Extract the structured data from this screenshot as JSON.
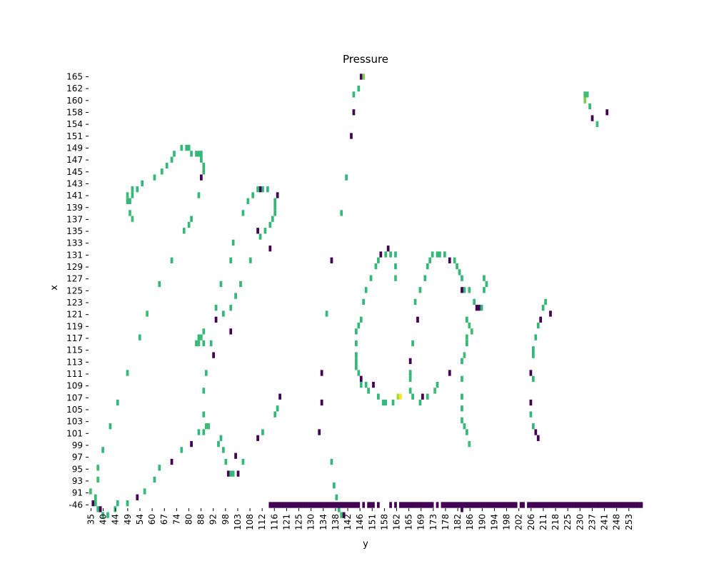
{
  "chart_data": {
    "type": "heatmap",
    "title": "Pressure",
    "xlabel": "y",
    "ylabel": "x",
    "colormap": "viridis",
    "grid": false,
    "legend": "none",
    "colors": {
      "low": "#440154",
      "mid": "#2d9e8a",
      "high": "#35b779",
      "bright": "#7ad151",
      "max": "#fde725"
    },
    "x_ticks": [
      "35",
      "40",
      "44",
      "49",
      "54",
      "60",
      "67",
      "74",
      "80",
      "88",
      "92",
      "98",
      "103",
      "108",
      "112",
      "116",
      "121",
      "125",
      "130",
      "134",
      "138",
      "142",
      "146",
      "151",
      "158",
      "162",
      "165",
      "169",
      "173",
      "178",
      "182",
      "186",
      "190",
      "194",
      "198",
      "202",
      "206",
      "211",
      "218",
      "225",
      "230",
      "237",
      "241",
      "248",
      "253"
    ],
    "y_ticks": [
      "165",
      "162",
      "160",
      "158",
      "154",
      "151",
      "149",
      "147",
      "145",
      "143",
      "141",
      "139",
      "137",
      "135",
      "133",
      "131",
      "129",
      "127",
      "125",
      "123",
      "121",
      "119",
      "117",
      "115",
      "113",
      "111",
      "109",
      "107",
      "105",
      "103",
      "101",
      "99",
      "97",
      "95",
      "93",
      "91",
      "-46"
    ],
    "cells": [
      {
        "x": 145,
        "y": 165,
        "v": 0.0
      },
      {
        "x": 146,
        "y": 165,
        "v": 0.8
      },
      {
        "x": 144,
        "y": 163,
        "v": 0.6
      },
      {
        "x": 142,
        "y": 162,
        "v": 0.6
      },
      {
        "x": 142,
        "y": 159,
        "v": 0.0
      },
      {
        "x": 141,
        "y": 155,
        "v": 0.0
      },
      {
        "x": 139,
        "y": 148,
        "v": 0.6
      },
      {
        "x": 137,
        "y": 142,
        "v": 0.6
      },
      {
        "x": 236,
        "y": 162,
        "v": 0.7
      },
      {
        "x": 237,
        "y": 162,
        "v": 0.7
      },
      {
        "x": 236,
        "y": 161,
        "v": 0.8
      },
      {
        "x": 238,
        "y": 160,
        "v": 0.4
      },
      {
        "x": 239,
        "y": 158,
        "v": 0.0
      },
      {
        "x": 241,
        "y": 157,
        "v": 0.7
      },
      {
        "x": 245,
        "y": 159,
        "v": 0.0
      },
      {
        "x": 72,
        "y": 153,
        "v": 0.6
      },
      {
        "x": 74,
        "y": 153,
        "v": 0.6
      },
      {
        "x": 75,
        "y": 153,
        "v": 0.6
      },
      {
        "x": 69,
        "y": 152,
        "v": 0.6
      },
      {
        "x": 76,
        "y": 152,
        "v": 0.6
      },
      {
        "x": 78,
        "y": 152,
        "v": 0.6
      },
      {
        "x": 79,
        "y": 152,
        "v": 0.6
      },
      {
        "x": 80,
        "y": 152,
        "v": 0.6
      },
      {
        "x": 68,
        "y": 151,
        "v": 0.6
      },
      {
        "x": 80,
        "y": 151,
        "v": 0.6
      },
      {
        "x": 66,
        "y": 150,
        "v": 0.6
      },
      {
        "x": 81,
        "y": 150,
        "v": 0.6
      },
      {
        "x": 81,
        "y": 149,
        "v": 0.6
      },
      {
        "x": 64,
        "y": 149,
        "v": 0.6
      },
      {
        "x": 80,
        "y": 148,
        "v": 0.0
      },
      {
        "x": 61,
        "y": 148,
        "v": 0.6
      },
      {
        "x": 56,
        "y": 147,
        "v": 0.6
      },
      {
        "x": 54,
        "y": 146,
        "v": 0.6
      },
      {
        "x": 52,
        "y": 146,
        "v": 0.6
      },
      {
        "x": 50,
        "y": 145,
        "v": 0.7
      },
      {
        "x": 52,
        "y": 145,
        "v": 0.6
      },
      {
        "x": 50,
        "y": 144,
        "v": 0.6
      },
      {
        "x": 51,
        "y": 144,
        "v": 0.6
      },
      {
        "x": 51,
        "y": 142,
        "v": 0.7
      },
      {
        "x": 52,
        "y": 141,
        "v": 0.7
      },
      {
        "x": 79,
        "y": 145,
        "v": 0.6
      },
      {
        "x": 76,
        "y": 141,
        "v": 0.6
      },
      {
        "x": 75,
        "y": 140,
        "v": 0.6
      },
      {
        "x": 73,
        "y": 139,
        "v": 0.6
      },
      {
        "x": 68,
        "y": 134,
        "v": 0.6
      },
      {
        "x": 63,
        "y": 130,
        "v": 0.6
      },
      {
        "x": 58,
        "y": 125,
        "v": 0.7
      },
      {
        "x": 55,
        "y": 121,
        "v": 0.6
      },
      {
        "x": 50,
        "y": 115,
        "v": 0.6
      },
      {
        "x": 46,
        "y": 110,
        "v": 0.6
      },
      {
        "x": 43,
        "y": 106,
        "v": 0.6
      },
      {
        "x": 40,
        "y": 102,
        "v": 0.6
      },
      {
        "x": 38,
        "y": 99,
        "v": 0.7
      },
      {
        "x": 38,
        "y": 97,
        "v": 0.7
      },
      {
        "x": 35,
        "y": 95,
        "v": 0.7
      },
      {
        "x": 37,
        "y": 94,
        "v": 0.6
      },
      {
        "x": 36,
        "y": 93,
        "v": 0.0
      },
      {
        "x": 37,
        "y": 93,
        "v": 0.6
      },
      {
        "x": 38,
        "y": 92,
        "v": 0.6
      },
      {
        "x": 39,
        "y": 92,
        "v": 0.0
      },
      {
        "x": 40,
        "y": 91,
        "v": 0.6
      },
      {
        "x": 42,
        "y": 91,
        "v": 0.6
      },
      {
        "x": 45,
        "y": 92,
        "v": 0.6
      },
      {
        "x": 46,
        "y": 93,
        "v": 0.6
      },
      {
        "x": 50,
        "y": 93,
        "v": 0.6
      },
      {
        "x": 54,
        "y": 94,
        "v": 0.0
      },
      {
        "x": 57,
        "y": 95,
        "v": 0.6
      },
      {
        "x": 61,
        "y": 97,
        "v": 0.6
      },
      {
        "x": 63,
        "y": 99,
        "v": 0.6
      },
      {
        "x": 68,
        "y": 100,
        "v": 0.0
      },
      {
        "x": 72,
        "y": 102,
        "v": 0.6
      },
      {
        "x": 76,
        "y": 103,
        "v": 0.0
      },
      {
        "x": 79,
        "y": 105,
        "v": 0.6
      },
      {
        "x": 81,
        "y": 105,
        "v": 0.6
      },
      {
        "x": 82,
        "y": 106,
        "v": 0.7
      },
      {
        "x": 83,
        "y": 106,
        "v": 0.7
      },
      {
        "x": 81,
        "y": 108,
        "v": 0.6
      },
      {
        "x": 81,
        "y": 112,
        "v": 0.6
      },
      {
        "x": 82,
        "y": 115,
        "v": 0.6
      },
      {
        "x": 78,
        "y": 120,
        "v": 0.6
      },
      {
        "x": 79,
        "y": 121,
        "v": 0.6
      },
      {
        "x": 80,
        "y": 121,
        "v": 0.7
      },
      {
        "x": 79,
        "y": 120,
        "v": 0.7
      },
      {
        "x": 81,
        "y": 120,
        "v": 0.6
      },
      {
        "x": 81,
        "y": 122,
        "v": 0.6
      },
      {
        "x": 84,
        "y": 120,
        "v": 0.6
      },
      {
        "x": 86,
        "y": 124,
        "v": 0.0
      },
      {
        "x": 86,
        "y": 126,
        "v": 0.6
      },
      {
        "x": 89,
        "y": 125,
        "v": 0.6
      },
      {
        "x": 92,
        "y": 126,
        "v": 0.6
      },
      {
        "x": 94,
        "y": 128,
        "v": 0.6
      },
      {
        "x": 96,
        "y": 130,
        "v": 0.6
      },
      {
        "x": 88,
        "y": 130,
        "v": 0.6
      },
      {
        "x": 92,
        "y": 134,
        "v": 0.6
      },
      {
        "x": 93,
        "y": 137,
        "v": 0.6
      },
      {
        "x": 100,
        "y": 134,
        "v": 0.6
      },
      {
        "x": 103,
        "y": 139,
        "v": 0.0
      },
      {
        "x": 104,
        "y": 138,
        "v": 0.6
      },
      {
        "x": 106,
        "y": 139,
        "v": 0.6
      },
      {
        "x": 108,
        "y": 136,
        "v": 0.0
      },
      {
        "x": 108,
        "y": 140,
        "v": 0.6
      },
      {
        "x": 109,
        "y": 141,
        "v": 0.6
      },
      {
        "x": 110,
        "y": 142,
        "v": 0.6
      },
      {
        "x": 110,
        "y": 143,
        "v": 0.6
      },
      {
        "x": 110,
        "y": 144,
        "v": 0.6
      },
      {
        "x": 111,
        "y": 145,
        "v": 0.0
      },
      {
        "x": 107,
        "y": 146,
        "v": 0.6
      },
      {
        "x": 105,
        "y": 146,
        "v": 0.6
      },
      {
        "x": 104,
        "y": 146,
        "v": 0.0
      },
      {
        "x": 103,
        "y": 146,
        "v": 0.6
      },
      {
        "x": 101,
        "y": 145,
        "v": 0.6
      },
      {
        "x": 99,
        "y": 144,
        "v": 0.6
      },
      {
        "x": 97,
        "y": 142,
        "v": 0.6
      },
      {
        "x": 92,
        "y": 122,
        "v": 0.0
      },
      {
        "x": 85,
        "y": 118,
        "v": 0.0
      },
      {
        "x": 88,
        "y": 104,
        "v": 0.6
      },
      {
        "x": 87,
        "y": 103,
        "v": 0.6
      },
      {
        "x": 89,
        "y": 102,
        "v": 0.6
      },
      {
        "x": 90,
        "y": 100,
        "v": 0.6
      },
      {
        "x": 91,
        "y": 98,
        "v": 0.0
      },
      {
        "x": 92,
        "y": 98,
        "v": 0.6
      },
      {
        "x": 93,
        "y": 98,
        "v": 0.6
      },
      {
        "x": 95,
        "y": 98,
        "v": 0.0
      },
      {
        "x": 94,
        "y": 101,
        "v": 0.0
      },
      {
        "x": 97,
        "y": 100,
        "v": 0.6
      },
      {
        "x": 103,
        "y": 104,
        "v": 0.0
      },
      {
        "x": 105,
        "y": 105,
        "v": 0.6
      },
      {
        "x": 110,
        "y": 108,
        "v": 0.6
      },
      {
        "x": 111,
        "y": 109,
        "v": 0.6
      },
      {
        "x": 112,
        "y": 111,
        "v": 0.0
      },
      {
        "x": 133,
        "y": 100,
        "v": 0.6
      },
      {
        "x": 134,
        "y": 96,
        "v": 0.6
      },
      {
        "x": 135,
        "y": 94,
        "v": 0.6
      },
      {
        "x": 136,
        "y": 92,
        "v": 0.6
      },
      {
        "x": 137,
        "y": 91,
        "v": 0.7
      },
      {
        "x": 138,
        "y": 91,
        "v": 0.0
      },
      {
        "x": 128,
        "y": 105,
        "v": 0.0
      },
      {
        "x": 129,
        "y": 110,
        "v": 0.0
      },
      {
        "x": 129,
        "y": 115,
        "v": 0.0
      },
      {
        "x": 131,
        "y": 125,
        "v": 0.6
      },
      {
        "x": 133,
        "y": 134,
        "v": 0.0
      },
      {
        "x": 143,
        "y": 122,
        "v": 0.6
      },
      {
        "x": 144,
        "y": 123,
        "v": 0.6
      },
      {
        "x": 145,
        "y": 124,
        "v": 0.6
      },
      {
        "x": 143,
        "y": 120,
        "v": 0.6
      },
      {
        "x": 143,
        "y": 118,
        "v": 0.6
      },
      {
        "x": 143,
        "y": 117,
        "v": 0.6
      },
      {
        "x": 143,
        "y": 116,
        "v": 0.6
      },
      {
        "x": 144,
        "y": 115,
        "v": 0.6
      },
      {
        "x": 145,
        "y": 114,
        "v": 0.0
      },
      {
        "x": 145,
        "y": 113,
        "v": 0.6
      },
      {
        "x": 147,
        "y": 113,
        "v": 0.6
      },
      {
        "x": 148,
        "y": 112,
        "v": 0.6
      },
      {
        "x": 150,
        "y": 113,
        "v": 0.0
      },
      {
        "x": 152,
        "y": 111,
        "v": 0.6
      },
      {
        "x": 154,
        "y": 110,
        "v": 0.6
      },
      {
        "x": 155,
        "y": 110,
        "v": 0.6
      },
      {
        "x": 158,
        "y": 110,
        "v": 0.6
      },
      {
        "x": 160,
        "y": 111,
        "v": 0.9
      },
      {
        "x": 161,
        "y": 111,
        "v": 1.0
      },
      {
        "x": 146,
        "y": 127,
        "v": 0.6
      },
      {
        "x": 147,
        "y": 129,
        "v": 0.6
      },
      {
        "x": 149,
        "y": 131,
        "v": 0.6
      },
      {
        "x": 151,
        "y": 133,
        "v": 0.6
      },
      {
        "x": 152,
        "y": 134,
        "v": 0.6
      },
      {
        "x": 153,
        "y": 135,
        "v": 0.0
      },
      {
        "x": 155,
        "y": 135,
        "v": 0.6
      },
      {
        "x": 156,
        "y": 136,
        "v": 0.0
      },
      {
        "x": 157,
        "y": 135,
        "v": 0.6
      },
      {
        "x": 159,
        "y": 135,
        "v": 0.4
      },
      {
        "x": 159,
        "y": 133,
        "v": 0.6
      },
      {
        "x": 159,
        "y": 131,
        "v": 0.7
      },
      {
        "x": 165,
        "y": 117,
        "v": 0.0
      },
      {
        "x": 165,
        "y": 115,
        "v": 0.6
      },
      {
        "x": 165,
        "y": 114,
        "v": 0.6
      },
      {
        "x": 165,
        "y": 112,
        "v": 0.6
      },
      {
        "x": 166,
        "y": 111,
        "v": 0.6
      },
      {
        "x": 166,
        "y": 120,
        "v": 0.6
      },
      {
        "x": 167,
        "y": 127,
        "v": 0.6
      },
      {
        "x": 168,
        "y": 124,
        "v": 0.0
      },
      {
        "x": 169,
        "y": 129,
        "v": 0.6
      },
      {
        "x": 171,
        "y": 131,
        "v": 0.6
      },
      {
        "x": 172,
        "y": 133,
        "v": 0.6
      },
      {
        "x": 173,
        "y": 134,
        "v": 0.6
      },
      {
        "x": 174,
        "y": 135,
        "v": 0.6
      },
      {
        "x": 176,
        "y": 135,
        "v": 0.6
      },
      {
        "x": 177,
        "y": 135,
        "v": 0.6
      },
      {
        "x": 179,
        "y": 135,
        "v": 0.6
      },
      {
        "x": 181,
        "y": 134,
        "v": 0.0
      },
      {
        "x": 183,
        "y": 134,
        "v": 0.6
      },
      {
        "x": 184,
        "y": 133,
        "v": 0.6
      },
      {
        "x": 185,
        "y": 132,
        "v": 0.6
      },
      {
        "x": 186,
        "y": 131,
        "v": 0.6
      },
      {
        "x": 187,
        "y": 129,
        "v": 0.6
      },
      {
        "x": 191,
        "y": 127,
        "v": 0.6
      },
      {
        "x": 192,
        "y": 126,
        "v": 0.0
      },
      {
        "x": 193,
        "y": 126,
        "v": 0.0
      },
      {
        "x": 194,
        "y": 126,
        "v": 0.6
      },
      {
        "x": 195,
        "y": 129,
        "v": 0.6
      },
      {
        "x": 196,
        "y": 130,
        "v": 0.6
      },
      {
        "x": 195,
        "y": 131,
        "v": 0.6
      },
      {
        "x": 189,
        "y": 129,
        "v": 0.4
      },
      {
        "x": 186,
        "y": 129,
        "v": 0.0
      },
      {
        "x": 170,
        "y": 111,
        "v": 0.0
      },
      {
        "x": 169,
        "y": 110,
        "v": 0.6
      },
      {
        "x": 172,
        "y": 111,
        "v": 0.6
      },
      {
        "x": 175,
        "y": 112,
        "v": 0.7
      },
      {
        "x": 176,
        "y": 113,
        "v": 0.6
      },
      {
        "x": 181,
        "y": 115,
        "v": 0.0
      },
      {
        "x": 188,
        "y": 124,
        "v": 0.6
      },
      {
        "x": 189,
        "y": 123,
        "v": 0.7
      },
      {
        "x": 190,
        "y": 122,
        "v": 0.7
      },
      {
        "x": 188,
        "y": 121,
        "v": 0.7
      },
      {
        "x": 188,
        "y": 120,
        "v": 0.6
      },
      {
        "x": 187,
        "y": 118,
        "v": 0.7
      },
      {
        "x": 186,
        "y": 117,
        "v": 0.6
      },
      {
        "x": 186,
        "y": 114,
        "v": 0.6
      },
      {
        "x": 186,
        "y": 111,
        "v": 0.6
      },
      {
        "x": 186,
        "y": 109,
        "v": 0.6
      },
      {
        "x": 186,
        "y": 107,
        "v": 0.6
      },
      {
        "x": 187,
        "y": 106,
        "v": 0.6
      },
      {
        "x": 188,
        "y": 105,
        "v": 0.6
      },
      {
        "x": 189,
        "y": 103,
        "v": 0.7
      },
      {
        "x": 186,
        "y": 92,
        "v": 0.0
      },
      {
        "x": 218,
        "y": 124,
        "v": 0.0
      },
      {
        "x": 219,
        "y": 126,
        "v": 0.6
      },
      {
        "x": 220,
        "y": 127,
        "v": 0.6
      },
      {
        "x": 222,
        "y": 125,
        "v": 0.0
      },
      {
        "x": 217,
        "y": 123,
        "v": 0.6
      },
      {
        "x": 216,
        "y": 121,
        "v": 0.6
      },
      {
        "x": 215,
        "y": 119,
        "v": 0.6
      },
      {
        "x": 215,
        "y": 118,
        "v": 0.6
      },
      {
        "x": 214,
        "y": 115,
        "v": 0.0
      },
      {
        "x": 215,
        "y": 114,
        "v": 0.6
      },
      {
        "x": 214,
        "y": 110,
        "v": 0.0
      },
      {
        "x": 214,
        "y": 108,
        "v": 0.6
      },
      {
        "x": 215,
        "y": 106,
        "v": 0.6
      },
      {
        "x": 216,
        "y": 105,
        "v": 0.0
      },
      {
        "x": 217,
        "y": 104,
        "v": 0.0
      }
    ],
    "bottom_row": {
      "x": [
        108,
        109,
        110,
        111,
        112,
        113,
        114,
        115,
        116,
        117,
        118,
        119,
        120,
        121,
        122,
        123,
        124,
        125,
        126,
        127,
        128,
        129,
        130,
        131,
        132,
        133,
        134,
        135,
        136,
        137,
        138,
        139,
        140,
        141,
        142,
        143,
        144,
        146,
        148,
        149,
        150,
        152,
        157,
        159,
        161,
        162,
        163,
        164,
        165,
        166,
        167,
        168,
        169,
        170,
        171,
        172,
        173,
        174,
        176,
        178,
        179,
        180,
        181,
        182,
        183,
        184,
        185,
        186,
        187,
        188,
        189,
        190,
        191,
        192,
        193,
        194,
        195,
        196,
        197,
        198,
        199,
        200,
        201,
        202,
        203,
        204,
        205,
        206,
        207,
        208,
        210,
        211,
        213,
        214,
        215,
        216,
        217,
        218,
        219,
        220,
        221,
        222,
        223,
        224,
        225,
        226,
        227,
        228,
        229,
        230,
        231,
        232,
        233,
        234,
        235,
        236,
        237,
        238,
        239,
        240,
        241,
        242,
        243,
        244,
        245,
        246,
        247,
        248,
        249,
        250,
        251,
        252,
        253,
        254,
        255,
        256,
        257,
        258,
        259
      ],
      "v": 0.0
    }
  }
}
